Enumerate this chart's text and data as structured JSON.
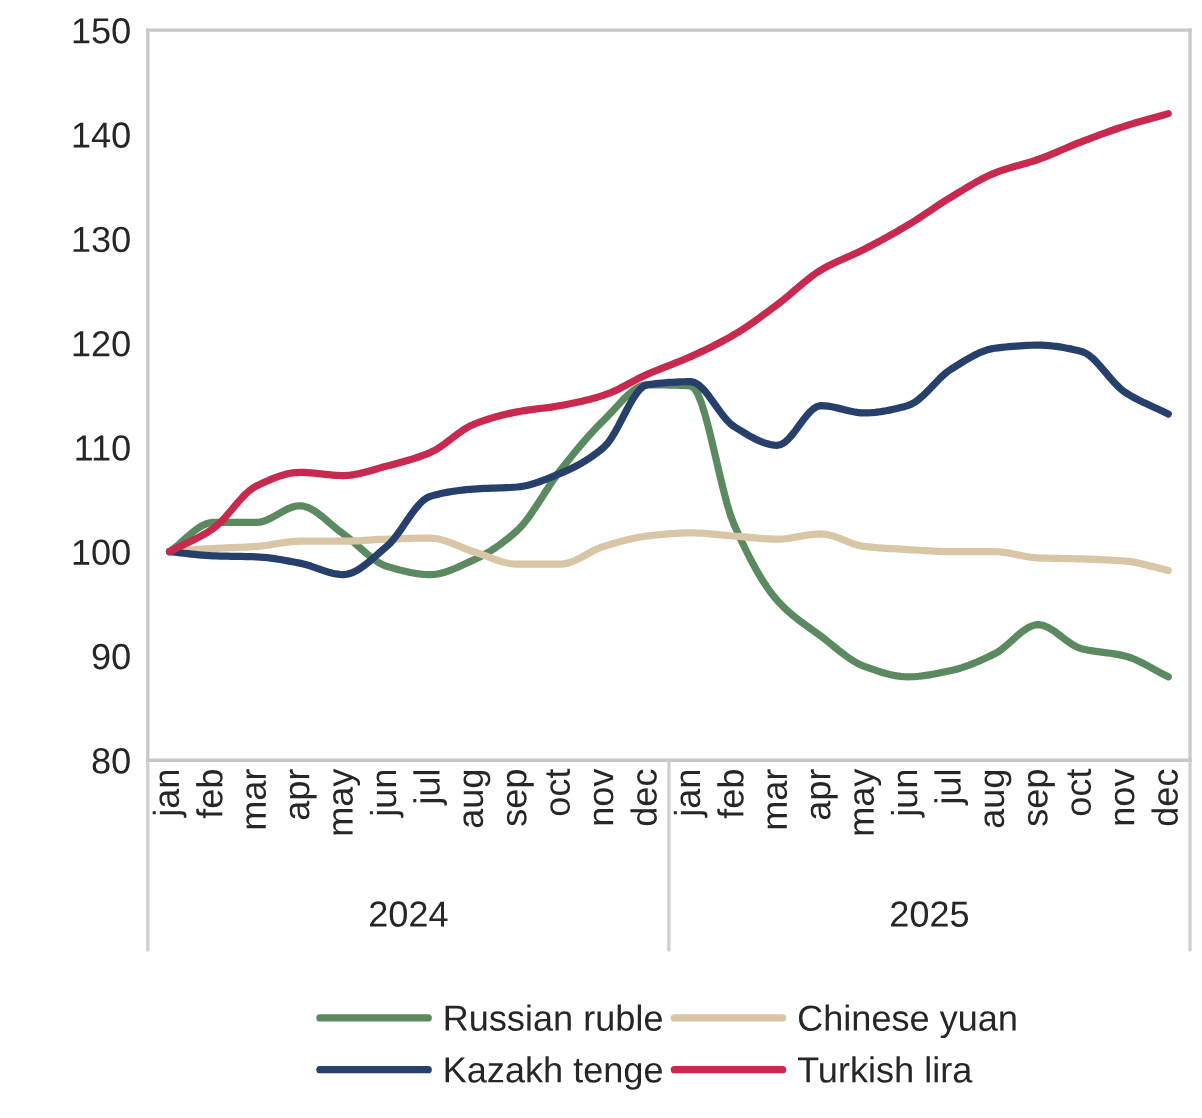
{
  "chart_data": {
    "type": "line",
    "categories": [
      "jan",
      "feb",
      "mar",
      "apr",
      "may",
      "jun",
      "jul",
      "aug",
      "sep",
      "oct",
      "nov",
      "dec",
      "jan",
      "feb",
      "mar",
      "apr",
      "may",
      "jun",
      "jul",
      "aug",
      "sep",
      "oct",
      "nov",
      "dec"
    ],
    "annotations": [
      "2024",
      "2025"
    ],
    "ylim": [
      80,
      150
    ],
    "yticks": [
      80,
      90,
      100,
      110,
      120,
      130,
      140,
      150
    ],
    "grid": false,
    "legend": "bottom",
    "marker": "none",
    "line_style": "solid",
    "series": [
      {
        "name": "Russian ruble",
        "color": "#5b8a60",
        "values": [
          100,
          102.8,
          102.8,
          104.4,
          101.7,
          98.6,
          97.8,
          99.2,
          102,
          107.8,
          112.6,
          116,
          115.9,
          102.6,
          95.3,
          91.9,
          89,
          88,
          88.6,
          90.2,
          93,
          90.7,
          90,
          88
        ]
      },
      {
        "name": "Chinese yuan",
        "color": "#d9c6a6",
        "values": [
          100,
          100.3,
          100.5,
          101,
          101,
          101.2,
          101.3,
          100,
          98.8,
          98.8,
          100.5,
          101.5,
          101.8,
          101.5,
          101.2,
          101.7,
          100.5,
          100.2,
          100,
          100,
          99.4,
          99.3,
          99.1,
          98.2
        ]
      },
      {
        "name": "Kazakh tenge",
        "color": "#27406b",
        "values": [
          100,
          99.6,
          99.5,
          98.9,
          97.8,
          100.5,
          105.3,
          106,
          106.2,
          107.5,
          110,
          116,
          116.3,
          112,
          110.2,
          114,
          113.3,
          114,
          117.5,
          119.5,
          119.8,
          119.2,
          115.3,
          113.2
        ]
      },
      {
        "name": "Turkish lira",
        "color": "#c8294f",
        "values": [
          100,
          102.2,
          106.3,
          107.6,
          107.3,
          108.2,
          109.5,
          112.2,
          113.4,
          114,
          115,
          117,
          118.7,
          120.8,
          123.7,
          127,
          129,
          131.3,
          134,
          136.3,
          137.6,
          139.3,
          140.8,
          142
        ]
      }
    ]
  }
}
